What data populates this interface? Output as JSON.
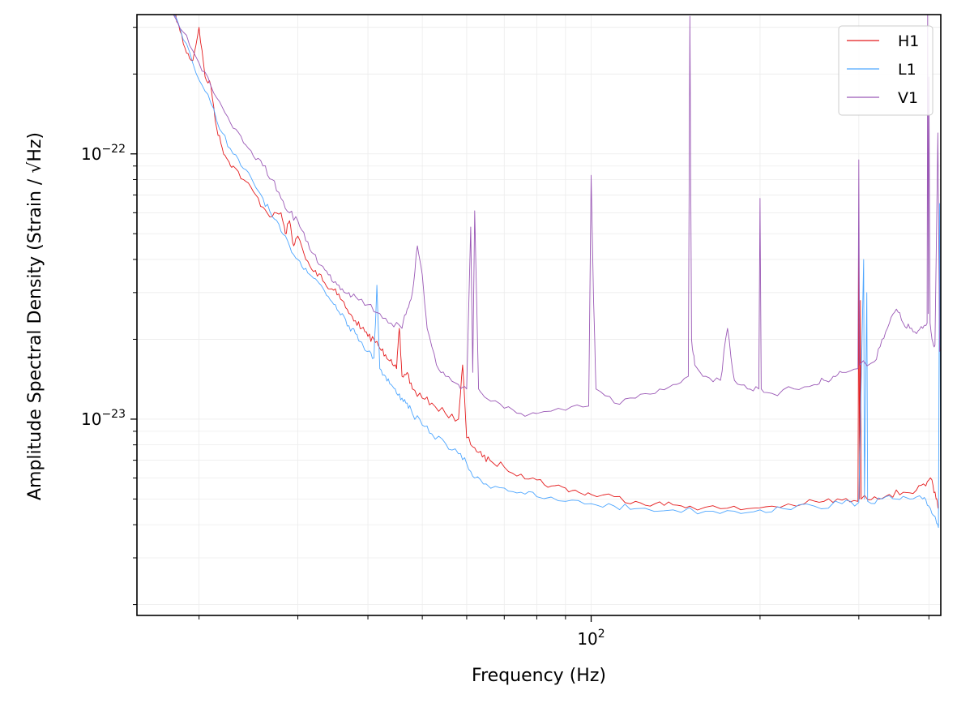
{
  "chart_data": {
    "type": "line",
    "title": "",
    "xlabel": "Frequency (Hz)",
    "ylabel": "Amplitude Spectral Density (Strain / √Hz)",
    "xscale": "log",
    "yscale": "log",
    "xlim": [
      15.5,
      420
    ],
    "ylim": [
      1.82e-24,
      3.35e-22
    ],
    "x_ticks": [
      {
        "value": 100,
        "label": "10",
        "exp": "2"
      }
    ],
    "y_ticks": [
      {
        "value": 1e-22,
        "label": "10",
        "exp": "−22"
      },
      {
        "value": 1e-23,
        "label": "10",
        "exp": "−23"
      }
    ],
    "grid": true,
    "legend": {
      "placement": "top-right"
    },
    "series": [
      {
        "name": "H1",
        "color": "#e41a1c",
        "points": [
          [
            18,
            3.6e-22
          ],
          [
            18.5,
            2.9e-22
          ],
          [
            19,
            2.4e-22
          ],
          [
            19.5,
            2.25e-22
          ],
          [
            20,
            3e-22
          ],
          [
            20.5,
            1.95e-22
          ],
          [
            21,
            1.8e-22
          ],
          [
            21.5,
            1.25e-22
          ],
          [
            22,
            1.05e-22
          ],
          [
            22.5,
            9.5e-23
          ],
          [
            23,
            9e-23
          ],
          [
            24,
            8e-23
          ],
          [
            25,
            7.2e-23
          ],
          [
            26,
            6.3e-23
          ],
          [
            27,
            5.8e-23
          ],
          [
            28,
            6e-23
          ],
          [
            28.5,
            5e-23
          ],
          [
            29,
            5.6e-23
          ],
          [
            29.5,
            4.5e-23
          ],
          [
            30,
            4.9e-23
          ],
          [
            31,
            4e-23
          ],
          [
            32,
            3.6e-23
          ],
          [
            33,
            3.5e-23
          ],
          [
            34,
            3.1e-23
          ],
          [
            35,
            3.1e-23
          ],
          [
            36,
            2.8e-23
          ],
          [
            37,
            2.5e-23
          ],
          [
            38,
            2.35e-23
          ],
          [
            39,
            2.2e-23
          ],
          [
            40,
            2.05e-23
          ],
          [
            41,
            2e-23
          ],
          [
            42,
            1.85e-23
          ],
          [
            43,
            1.75e-23
          ],
          [
            44,
            1.68e-23
          ],
          [
            45,
            1.55e-23
          ],
          [
            45.5,
            2.2e-23
          ],
          [
            46,
            1.45e-23
          ],
          [
            47,
            1.5e-23
          ],
          [
            48,
            1.3e-23
          ],
          [
            50,
            1.2e-23
          ],
          [
            52,
            1.15e-23
          ],
          [
            55,
            1.05e-23
          ],
          [
            58,
            1e-23
          ],
          [
            59,
            1.6e-23
          ],
          [
            60,
            8.5e-24
          ],
          [
            62,
            7.8e-24
          ],
          [
            64,
            7.2e-24
          ],
          [
            66,
            7e-24
          ],
          [
            70,
            6.6e-24
          ],
          [
            75,
            6.2e-24
          ],
          [
            80,
            5.9e-24
          ],
          [
            85,
            5.6e-24
          ],
          [
            90,
            5.5e-24
          ],
          [
            95,
            5.3e-24
          ],
          [
            100,
            5.2e-24
          ],
          [
            110,
            5.1e-24
          ],
          [
            120,
            4.9e-24
          ],
          [
            130,
            4.8e-24
          ],
          [
            140,
            4.75e-24
          ],
          [
            150,
            4.7e-24
          ],
          [
            170,
            4.6e-24
          ],
          [
            190,
            4.6e-24
          ],
          [
            210,
            4.7e-24
          ],
          [
            240,
            4.8e-24
          ],
          [
            260,
            4.9e-24
          ],
          [
            280,
            4.95e-24
          ],
          [
            299,
            4.9e-24
          ],
          [
            300,
            4.6e-23
          ],
          [
            301,
            5e-24
          ],
          [
            302,
            2.8e-23
          ],
          [
            303,
            5e-24
          ],
          [
            320,
            5.1e-24
          ],
          [
            340,
            5.2e-24
          ],
          [
            360,
            5.3e-24
          ],
          [
            380,
            5.4e-24
          ],
          [
            395,
            5.6e-24
          ],
          [
            405,
            5.9e-24
          ],
          [
            412,
            5e-24
          ],
          [
            416,
            4.6e-24
          ]
        ]
      },
      {
        "name": "L1",
        "color": "#4da6ff",
        "points": [
          [
            18,
            3.4e-22
          ],
          [
            19,
            2.6e-22
          ],
          [
            20,
            1.9e-22
          ],
          [
            21,
            1.55e-22
          ],
          [
            22,
            1.2e-22
          ],
          [
            23,
            1e-22
          ],
          [
            24,
            8.8e-23
          ],
          [
            25,
            7.8e-23
          ],
          [
            26,
            6.8e-23
          ],
          [
            27,
            5.8e-23
          ],
          [
            28,
            5.1e-23
          ],
          [
            29,
            4.5e-23
          ],
          [
            30,
            4e-23
          ],
          [
            31,
            3.7e-23
          ],
          [
            32,
            3.4e-23
          ],
          [
            33,
            3.2e-23
          ],
          [
            34,
            2.9e-23
          ],
          [
            35,
            2.7e-23
          ],
          [
            36,
            2.5e-23
          ],
          [
            37,
            2.25e-23
          ],
          [
            38,
            2.1e-23
          ],
          [
            39,
            1.95e-23
          ],
          [
            40,
            1.8e-23
          ],
          [
            41,
            1.7e-23
          ],
          [
            41.5,
            3.2e-23
          ],
          [
            42,
            1.55e-23
          ],
          [
            43,
            1.45e-23
          ],
          [
            44,
            1.35e-23
          ],
          [
            45,
            1.25e-23
          ],
          [
            46,
            1.2e-23
          ],
          [
            47,
            1.15e-23
          ],
          [
            48,
            1.05e-23
          ],
          [
            50,
            9.5e-24
          ],
          [
            52,
            8.8e-24
          ],
          [
            55,
            8.1e-24
          ],
          [
            58,
            7.4e-24
          ],
          [
            60,
            6.8e-24
          ],
          [
            62,
            6e-24
          ],
          [
            65,
            5.7e-24
          ],
          [
            70,
            5.5e-24
          ],
          [
            75,
            5.3e-24
          ],
          [
            80,
            5.1e-24
          ],
          [
            90,
            4.9e-24
          ],
          [
            100,
            4.8e-24
          ],
          [
            110,
            4.7e-24
          ],
          [
            120,
            4.6e-24
          ],
          [
            140,
            4.55e-24
          ],
          [
            160,
            4.5e-24
          ],
          [
            180,
            4.5e-24
          ],
          [
            200,
            4.55e-24
          ],
          [
            220,
            4.6e-24
          ],
          [
            250,
            4.7e-24
          ],
          [
            280,
            4.8e-24
          ],
          [
            300,
            4.85e-24
          ],
          [
            306,
            4e-23
          ],
          [
            307,
            5e-24
          ],
          [
            310,
            3e-23
          ],
          [
            311,
            4.9e-24
          ],
          [
            330,
            5e-24
          ],
          [
            350,
            5e-24
          ],
          [
            370,
            5e-24
          ],
          [
            390,
            5e-24
          ],
          [
            400,
            4.7e-24
          ],
          [
            410,
            4.3e-24
          ],
          [
            416,
            3.9e-24
          ],
          [
            418,
            6.5e-23
          ],
          [
            420,
            3.7e-24
          ]
        ]
      },
      {
        "name": "V1",
        "color": "#9b59b6",
        "points": [
          [
            18,
            3.35e-22
          ],
          [
            19,
            2.8e-22
          ],
          [
            20,
            2.2e-22
          ],
          [
            21,
            1.8e-22
          ],
          [
            22,
            1.5e-22
          ],
          [
            23,
            1.25e-22
          ],
          [
            24,
            1.1e-22
          ],
          [
            25,
            9.8e-23
          ],
          [
            26,
            9e-23
          ],
          [
            27,
            8e-23
          ],
          [
            28,
            6.8e-23
          ],
          [
            29,
            6e-23
          ],
          [
            30,
            5.6e-23
          ],
          [
            31,
            4.7e-23
          ],
          [
            32,
            4.2e-23
          ],
          [
            33,
            3.8e-23
          ],
          [
            34,
            3.5e-23
          ],
          [
            35,
            3.3e-23
          ],
          [
            36,
            3.1e-23
          ],
          [
            37,
            3e-23
          ],
          [
            38,
            2.9e-23
          ],
          [
            40,
            2.7e-23
          ],
          [
            42,
            2.5e-23
          ],
          [
            44,
            2.3e-23
          ],
          [
            46,
            2.2e-23
          ],
          [
            47,
            2.6e-23
          ],
          [
            48,
            3e-23
          ],
          [
            49,
            4.5e-23
          ],
          [
            50,
            3.5e-23
          ],
          [
            51,
            2.2e-23
          ],
          [
            53,
            1.6e-23
          ],
          [
            55,
            1.45e-23
          ],
          [
            58,
            1.35e-23
          ],
          [
            60,
            1.3e-23
          ],
          [
            61,
            5.3e-23
          ],
          [
            61.5,
            1.5e-23
          ],
          [
            62,
            6.1e-23
          ],
          [
            63,
            1.3e-23
          ],
          [
            65,
            1.2e-23
          ],
          [
            70,
            1.1e-23
          ],
          [
            75,
            1.05e-23
          ],
          [
            80,
            1.05e-23
          ],
          [
            90,
            1.08e-23
          ],
          [
            99,
            1.12e-23
          ],
          [
            100,
            8.3e-23
          ],
          [
            101,
            2.8e-23
          ],
          [
            102,
            1.3e-23
          ],
          [
            110,
            1.15e-23
          ],
          [
            120,
            1.2e-23
          ],
          [
            130,
            1.25e-23
          ],
          [
            140,
            1.35e-23
          ],
          [
            149,
            1.45e-23
          ],
          [
            150,
            3.3e-22
          ],
          [
            151,
            2e-23
          ],
          [
            153,
            1.6e-23
          ],
          [
            160,
            1.45e-23
          ],
          [
            170,
            1.4e-23
          ],
          [
            175,
            2.2e-23
          ],
          [
            180,
            1.4e-23
          ],
          [
            190,
            1.3e-23
          ],
          [
            199,
            1.3e-23
          ],
          [
            200,
            6.8e-23
          ],
          [
            201,
            1.3e-23
          ],
          [
            210,
            1.25e-23
          ],
          [
            230,
            1.3e-23
          ],
          [
            250,
            1.35e-23
          ],
          [
            260,
            1.4e-23
          ],
          [
            270,
            1.45e-23
          ],
          [
            280,
            1.5e-23
          ],
          [
            299,
            1.55e-23
          ],
          [
            300,
            9.5e-23
          ],
          [
            301,
            1.6e-23
          ],
          [
            320,
            1.65e-23
          ],
          [
            330,
            2e-23
          ],
          [
            340,
            2.3e-23
          ],
          [
            350,
            2.6e-23
          ],
          [
            360,
            2.3e-23
          ],
          [
            370,
            2.2e-23
          ],
          [
            380,
            2.1e-23
          ],
          [
            390,
            2.2e-23
          ],
          [
            397,
            2.3e-23
          ],
          [
            398,
            3.35e-22
          ],
          [
            399,
            2.5e-23
          ],
          [
            400,
            1.95e-22
          ],
          [
            402,
            2.3e-23
          ],
          [
            405,
            2e-23
          ],
          [
            410,
            1.9e-23
          ],
          [
            415,
            1.2e-22
          ],
          [
            418,
            1.8e-23
          ],
          [
            420,
            1.9e-23
          ]
        ]
      }
    ]
  }
}
